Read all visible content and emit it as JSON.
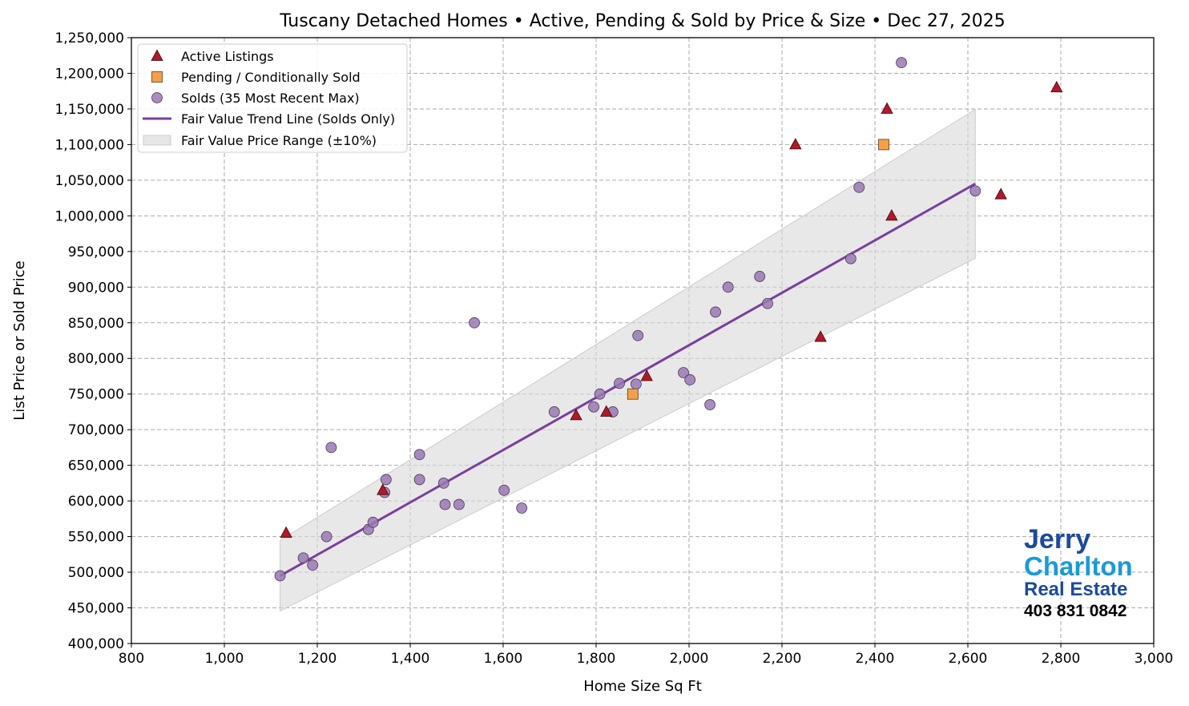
{
  "chart_data": {
    "type": "scatter",
    "title": "Tuscany Detached Homes • Active, Pending & Sold by Price & Size • Dec 27, 2025",
    "xlabel": "Home Size Sq Ft",
    "ylabel": "List Price or Sold Price",
    "xlim": [
      800,
      3000
    ],
    "ylim": [
      400000,
      1250000
    ],
    "xticks": [
      800,
      1000,
      1200,
      1400,
      1600,
      1800,
      2000,
      2200,
      2400,
      2600,
      2800,
      3000
    ],
    "xtick_labels": [
      "800",
      "1,000",
      "1,200",
      "1,400",
      "1,600",
      "1,800",
      "2,000",
      "2,200",
      "2,400",
      "2,600",
      "2,800",
      "3,000"
    ],
    "yticks": [
      400000,
      450000,
      500000,
      550000,
      600000,
      650000,
      700000,
      750000,
      800000,
      850000,
      900000,
      950000,
      1000000,
      1050000,
      1100000,
      1150000,
      1200000,
      1250000
    ],
    "ytick_labels": [
      "400,000",
      "450,000",
      "500,000",
      "550,000",
      "600,000",
      "650,000",
      "700,000",
      "750,000",
      "800,000",
      "850,000",
      "900,000",
      "950,000",
      "1,000,000",
      "1,050,000",
      "1,100,000",
      "1,150,000",
      "1,200,000",
      "1,250,000"
    ],
    "grid": true,
    "legend_position": "top-left",
    "series": [
      {
        "name": "Active Listings",
        "marker": "triangle",
        "color": "#b2182b",
        "points": [
          [
            1133,
            555000
          ],
          [
            1341,
            615000
          ],
          [
            1757,
            720000
          ],
          [
            1822,
            725000
          ],
          [
            1909,
            775000
          ],
          [
            2229,
            1100000
          ],
          [
            2283,
            830000
          ],
          [
            2426,
            1150000
          ],
          [
            2436,
            1000000
          ],
          [
            2671,
            1030000
          ],
          [
            2791,
            1180000
          ]
        ]
      },
      {
        "name": "Pending / Conditionally Sold",
        "marker": "square",
        "color": "#f4a04a",
        "points": [
          [
            1879,
            750000
          ],
          [
            2419,
            1100000
          ]
        ]
      },
      {
        "name": "Solds (35 Most Recent Max)",
        "marker": "circle",
        "color": "#9a78b4",
        "points": [
          [
            1120,
            495000
          ],
          [
            1170,
            520000
          ],
          [
            1190,
            510000
          ],
          [
            1220,
            550000
          ],
          [
            1230,
            675000
          ],
          [
            1310,
            560000
          ],
          [
            1320,
            570000
          ],
          [
            1345,
            612000
          ],
          [
            1348,
            630000
          ],
          [
            1420,
            665000
          ],
          [
            1420,
            630000
          ],
          [
            1472,
            625000
          ],
          [
            1475,
            595000
          ],
          [
            1505,
            595000
          ],
          [
            1538,
            850000
          ],
          [
            1602,
            615000
          ],
          [
            1640,
            590000
          ],
          [
            1710,
            725000
          ],
          [
            1795,
            732000
          ],
          [
            1808,
            750000
          ],
          [
            1836,
            725000
          ],
          [
            1850,
            765000
          ],
          [
            1886,
            764000
          ],
          [
            1890,
            832000
          ],
          [
            1988,
            780000
          ],
          [
            2002,
            770000
          ],
          [
            2045,
            735000
          ],
          [
            2057,
            865000
          ],
          [
            2084,
            900000
          ],
          [
            2152,
            915000
          ],
          [
            2169,
            877000
          ],
          [
            2348,
            940000
          ],
          [
            2366,
            1040000
          ],
          [
            2457,
            1215000
          ],
          [
            2616,
            1035000
          ]
        ]
      },
      {
        "name": "Fair Value Trend Line (Solds Only)",
        "type": "line",
        "color": "#7a3f9d",
        "points": [
          [
            1120,
            495000
          ],
          [
            2616,
            1045000
          ]
        ]
      },
      {
        "name": "Fair Value Price Range (±10%)",
        "type": "band",
        "color": "#e0e0e0",
        "band_pct": 10
      }
    ]
  },
  "logo": {
    "line1": "Jerry",
    "line2": "Charlton",
    "line3": "Real Estate",
    "phone": "403 831 0842",
    "colors": {
      "dark": "#1c4a9c",
      "light": "#1b9ad6"
    }
  }
}
